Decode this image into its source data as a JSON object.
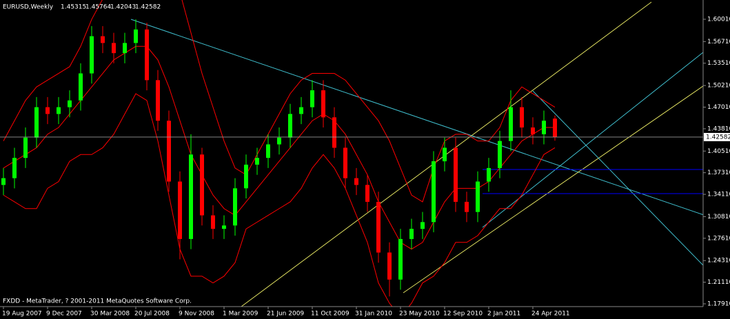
{
  "chart_data": {
    "type": "candlestick",
    "symbol": "EURUSD,Weekly",
    "footer": "FXDD - MetaTrader, ? 2001-2011 MetaQuotes Software Corp.",
    "categories": [
      "19 Aug 2007",
      null,
      null,
      null,
      "9 Dec 2007",
      null,
      null,
      null,
      "30 Mar 2008",
      null,
      null,
      null,
      "20 Jul 2008",
      null,
      null,
      null,
      "9 Nov 2008",
      null,
      null,
      null,
      "1 Mar 2009",
      null,
      null,
      null,
      "21 Jun 2009",
      null,
      null,
      null,
      "11 Oct 2009",
      null,
      null,
      null,
      "31 Jan 2010",
      null,
      null,
      null,
      "23 May 2010",
      null,
      null,
      null,
      "12 Sep 2010",
      null,
      null,
      null,
      "2 Jan 2011",
      null,
      null,
      null,
      "24 Apr 2011",
      null,
      null
    ],
    "open": [
      1.355,
      1.365,
      1.395,
      1.425,
      1.47,
      1.46,
      1.47,
      1.48,
      1.52,
      1.575,
      1.565,
      1.55,
      1.565,
      1.585,
      1.51,
      1.45,
      1.36,
      1.275,
      1.4,
      1.31,
      1.29,
      1.295,
      1.35,
      1.385,
      1.395,
      1.415,
      1.425,
      1.46,
      1.47,
      1.495,
      1.455,
      1.41,
      1.365,
      1.355,
      1.33,
      1.255,
      1.215,
      1.275,
      1.29,
      1.3,
      1.39,
      1.41,
      1.33,
      1.315,
      1.36,
      1.38,
      1.42,
      1.47,
      1.44,
      1.43,
      1.45315
    ],
    "high": [
      1.38,
      1.41,
      1.44,
      1.485,
      1.485,
      1.485,
      1.495,
      1.535,
      1.59,
      1.59,
      1.58,
      1.58,
      1.6,
      1.595,
      1.525,
      1.465,
      1.375,
      1.43,
      1.41,
      1.325,
      1.31,
      1.365,
      1.4,
      1.41,
      1.43,
      1.44,
      1.475,
      1.485,
      1.51,
      1.51,
      1.47,
      1.425,
      1.38,
      1.37,
      1.345,
      1.27,
      1.29,
      1.305,
      1.315,
      1.405,
      1.425,
      1.425,
      1.345,
      1.375,
      1.395,
      1.435,
      1.495,
      1.485,
      1.455,
      1.465,
      1.45764
    ],
    "low": [
      1.34,
      1.35,
      1.38,
      1.41,
      1.445,
      1.445,
      1.455,
      1.465,
      1.505,
      1.55,
      1.535,
      1.535,
      1.55,
      1.495,
      1.435,
      1.345,
      1.245,
      1.26,
      1.295,
      1.275,
      1.275,
      1.28,
      1.335,
      1.37,
      1.38,
      1.4,
      1.41,
      1.445,
      1.455,
      1.44,
      1.395,
      1.35,
      1.34,
      1.315,
      1.24,
      1.19,
      1.2,
      1.26,
      1.275,
      1.285,
      1.375,
      1.315,
      1.3,
      1.3,
      1.345,
      1.365,
      1.405,
      1.425,
      1.415,
      1.415,
      1.42043
    ],
    "close": [
      1.365,
      1.395,
      1.425,
      1.47,
      1.46,
      1.47,
      1.48,
      1.52,
      1.575,
      1.565,
      1.55,
      1.565,
      1.585,
      1.51,
      1.45,
      1.36,
      1.275,
      1.4,
      1.31,
      1.29,
      1.295,
      1.35,
      1.385,
      1.395,
      1.415,
      1.425,
      1.46,
      1.47,
      1.495,
      1.455,
      1.41,
      1.365,
      1.355,
      1.33,
      1.255,
      1.215,
      1.275,
      1.29,
      1.3,
      1.39,
      1.41,
      1.33,
      1.315,
      1.36,
      1.38,
      1.42,
      1.47,
      1.44,
      1.43,
      1.45,
      1.42582
    ],
    "up_color": "#00ff00",
    "down_color": "#ff0000",
    "bands": {
      "color": "#ff0000",
      "upper": [
        1.42,
        1.45,
        1.48,
        1.5,
        1.51,
        1.52,
        1.53,
        1.56,
        1.6,
        1.63,
        1.65,
        1.64,
        1.63,
        1.64,
        1.66,
        1.66,
        1.64,
        1.58,
        1.52,
        1.47,
        1.42,
        1.38,
        1.37,
        1.4,
        1.43,
        1.46,
        1.49,
        1.51,
        1.52,
        1.52,
        1.52,
        1.51,
        1.49,
        1.47,
        1.45,
        1.42,
        1.38,
        1.34,
        1.33,
        1.38,
        1.42,
        1.43,
        1.43,
        1.42,
        1.42,
        1.44,
        1.48,
        1.5,
        1.49,
        1.48,
        1.47
      ],
      "middle": [
        1.38,
        1.39,
        1.4,
        1.41,
        1.43,
        1.44,
        1.46,
        1.48,
        1.5,
        1.52,
        1.54,
        1.55,
        1.56,
        1.56,
        1.54,
        1.5,
        1.45,
        1.4,
        1.37,
        1.34,
        1.32,
        1.31,
        1.33,
        1.35,
        1.37,
        1.39,
        1.41,
        1.43,
        1.45,
        1.46,
        1.45,
        1.43,
        1.4,
        1.37,
        1.33,
        1.3,
        1.27,
        1.26,
        1.27,
        1.3,
        1.33,
        1.35,
        1.35,
        1.35,
        1.36,
        1.38,
        1.4,
        1.42,
        1.43,
        1.44,
        1.44
      ],
      "lower": [
        1.34,
        1.33,
        1.32,
        1.32,
        1.35,
        1.36,
        1.39,
        1.4,
        1.4,
        1.41,
        1.43,
        1.46,
        1.49,
        1.48,
        1.42,
        1.34,
        1.26,
        1.22,
        1.22,
        1.21,
        1.22,
        1.24,
        1.29,
        1.3,
        1.31,
        1.32,
        1.33,
        1.35,
        1.38,
        1.4,
        1.38,
        1.35,
        1.31,
        1.27,
        1.21,
        1.18,
        1.16,
        1.18,
        1.21,
        1.22,
        1.24,
        1.27,
        1.27,
        1.28,
        1.3,
        1.32,
        1.32,
        1.34,
        1.37,
        1.4,
        1.41
      ]
    },
    "levels": [
      1.3779,
      1.3422
    ],
    "level_color": "#0000ff",
    "ylim": [
      1.175,
      1.6286
    ],
    "yticks": [
      {
        "value": 1.6001,
        "label": "1.60010"
      },
      {
        "value": 1.5671,
        "label": "1.56710"
      },
      {
        "value": 1.5351,
        "label": "1.53510"
      },
      {
        "value": 1.5021,
        "label": "1.50210"
      },
      {
        "value": 1.4701,
        "label": "1.47010"
      },
      {
        "value": 1.4381,
        "label": "1.43810"
      },
      {
        "value": 1.4051,
        "label": "1.40510"
      },
      {
        "value": 1.3731,
        "label": "1.37310"
      },
      {
        "value": 1.3411,
        "label": "1.34110"
      },
      {
        "value": 1.3081,
        "label": "1.30810"
      },
      {
        "value": 1.2761,
        "label": "1.27610"
      },
      {
        "value": 1.2431,
        "label": "1.24310"
      },
      {
        "value": 1.2111,
        "label": "1.21110"
      },
      {
        "value": 1.1791,
        "label": "1.17910"
      }
    ]
  }
}
